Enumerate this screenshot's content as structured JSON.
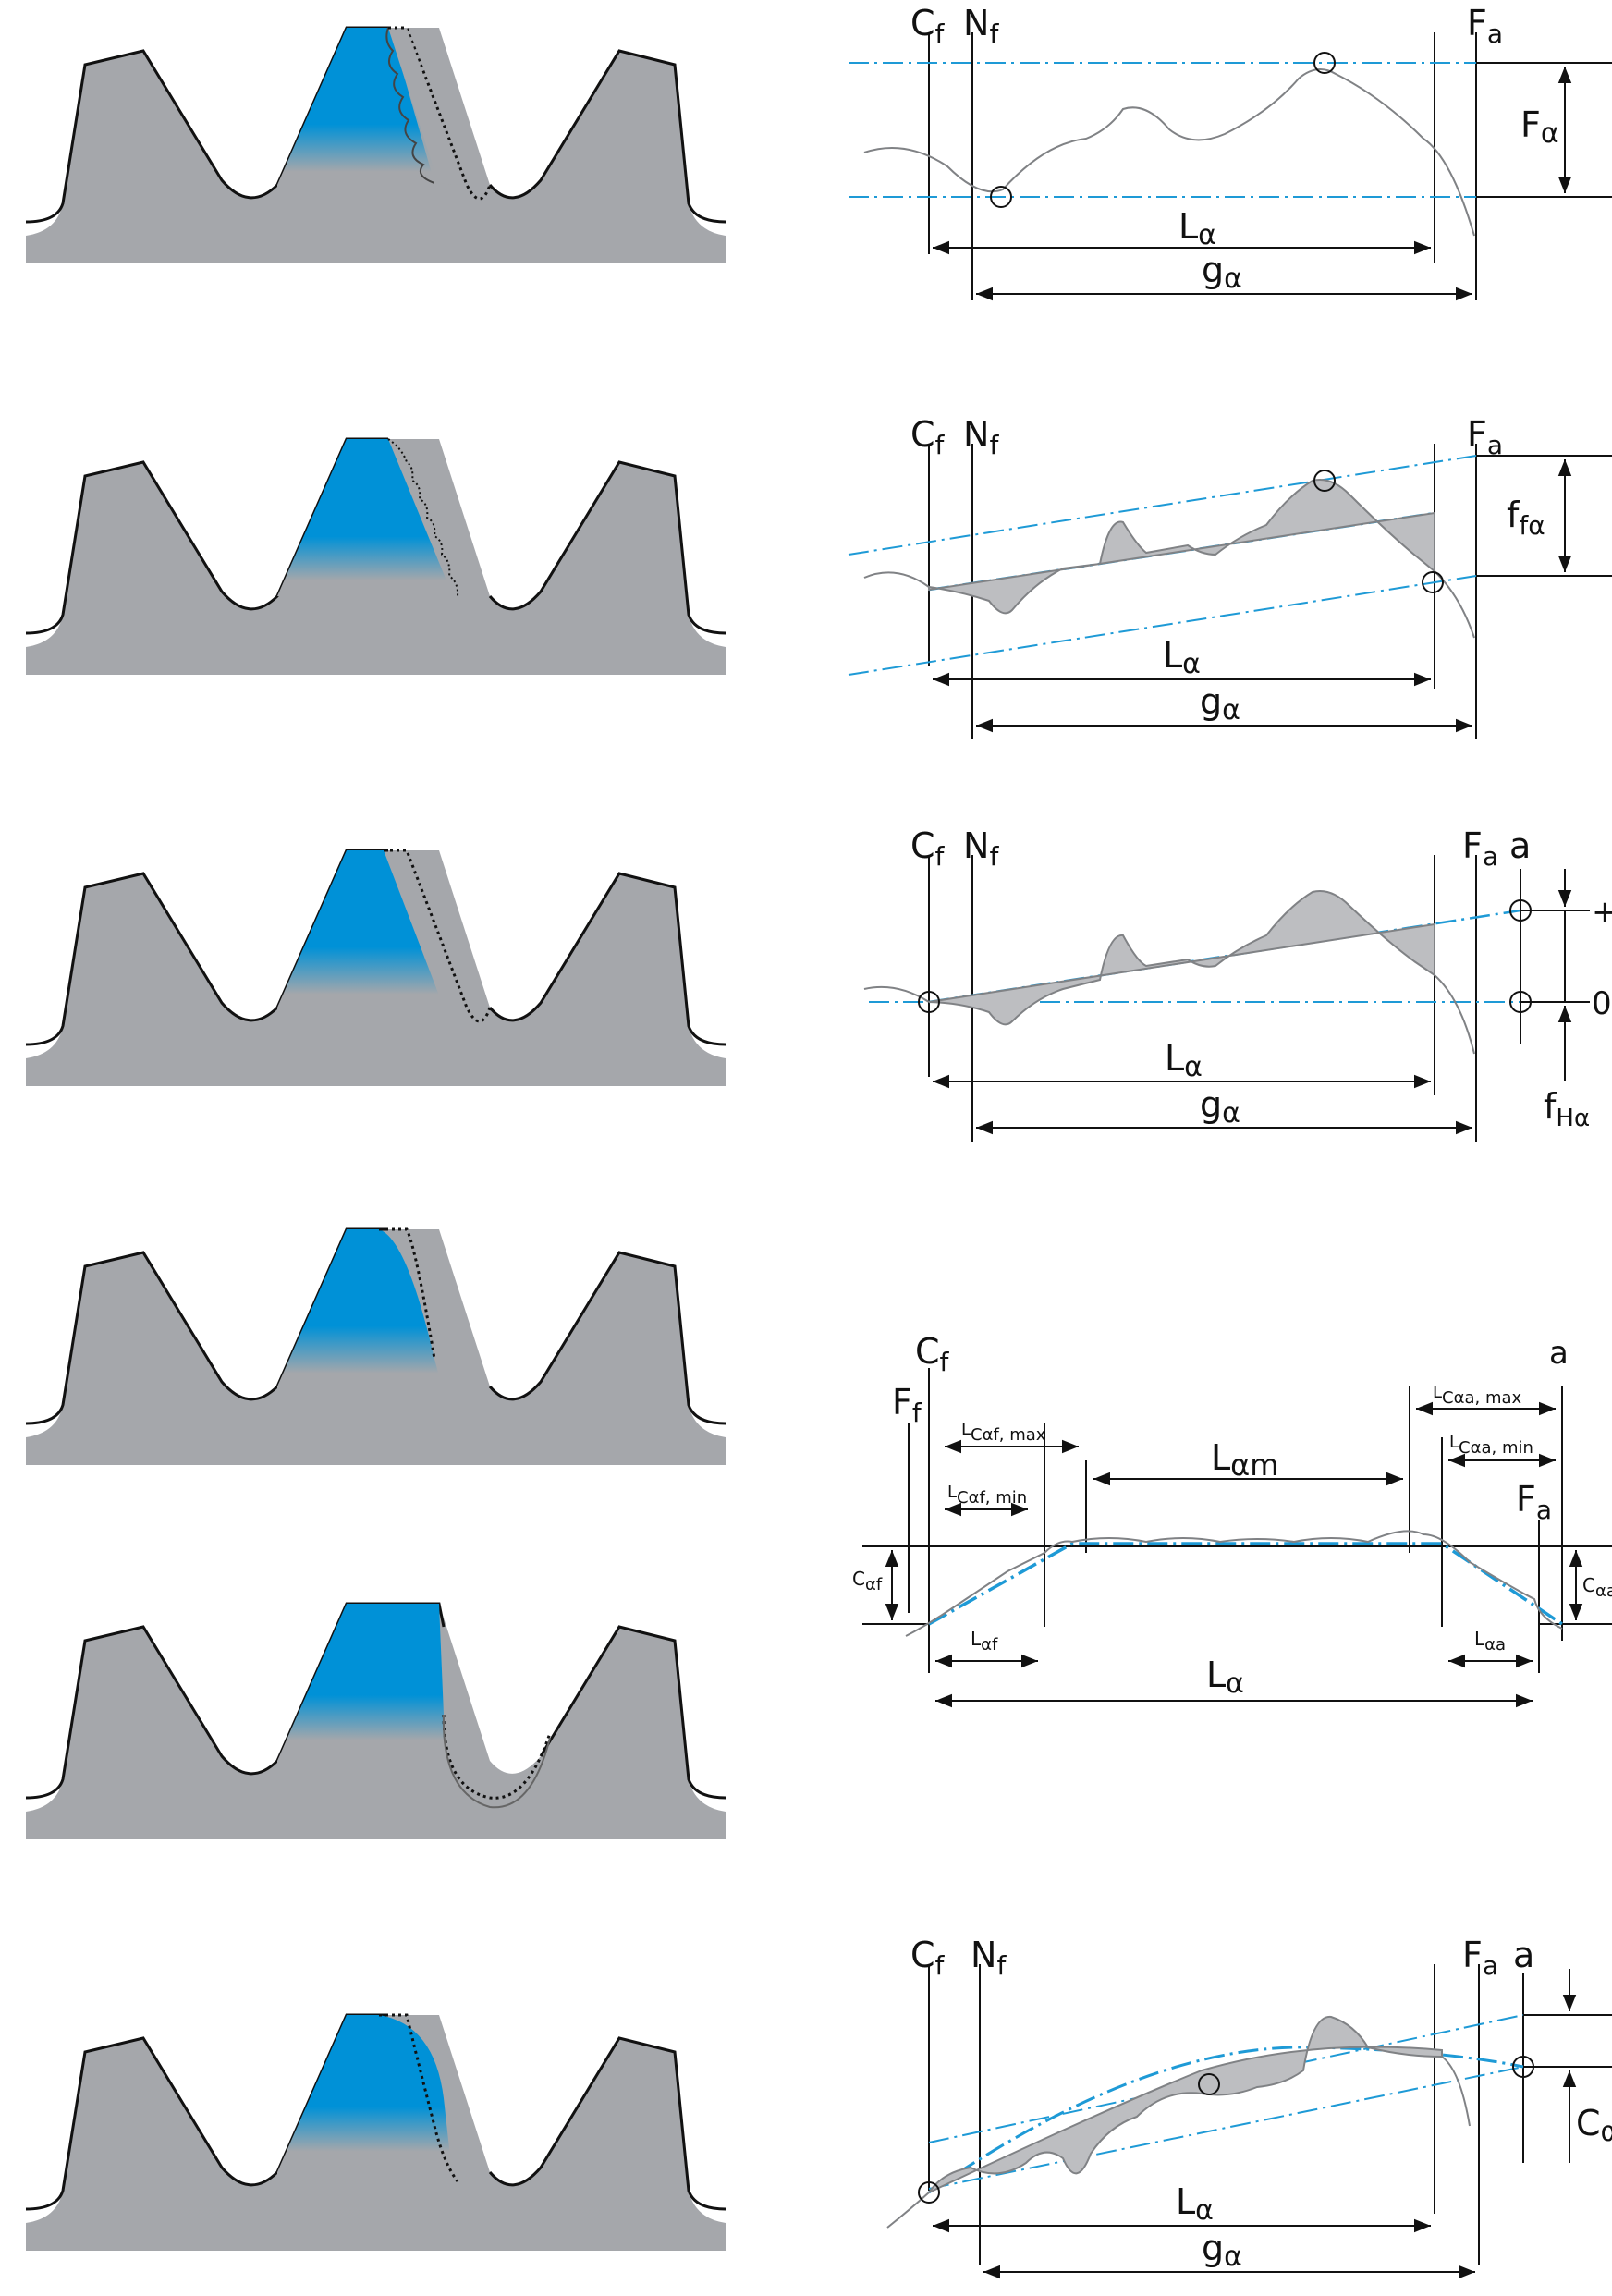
{
  "colors": {
    "gear_gray": "#a5a7ab",
    "tooth_blue": "#0091d7",
    "profile_gray": "#808285",
    "fill_gray": "#bdbec1",
    "dim_blue": "#1e9ad6",
    "ink": "#111111"
  },
  "panels": [
    {
      "labels": {
        "cf": "C",
        "cf_sub": "f",
        "nf": "N",
        "nf_sub": "f",
        "fa": "F",
        "fa_sub": "a",
        "dev": "F",
        "dev_sub": "α",
        "la": "L",
        "la_sub": "α",
        "ga": "g",
        "ga_sub": "α"
      }
    },
    {
      "labels": {
        "cf": "C",
        "cf_sub": "f",
        "nf": "N",
        "nf_sub": "f",
        "fa": "F",
        "fa_sub": "a",
        "dev": "f",
        "dev_sub": "fα",
        "la": "L",
        "la_sub": "α",
        "ga": "g",
        "ga_sub": "α"
      }
    },
    {
      "labels": {
        "cf": "C",
        "cf_sub": "f",
        "nf": "N",
        "nf_sub": "f",
        "fa": "F",
        "fa_sub": "a",
        "a": "a",
        "plus": "+",
        "zero": "0",
        "dev": "f",
        "dev_sub": "Hα",
        "la": "L",
        "la_sub": "α",
        "ga": "g",
        "ga_sub": "α"
      }
    },
    {
      "labels": {
        "cf": "C",
        "cf_sub": "f",
        "ff": "F",
        "ff_sub": "f",
        "a": "a",
        "fa": "F",
        "fa_sub": "a",
        "lcaf_max": "L",
        "lcaf_max_sub": "Cαf, max",
        "lcaf_min": "L",
        "lcaf_min_sub": "Cαf, min",
        "lam": "L",
        "lam_sub": "αm",
        "lcaa_max": "L",
        "lcaa_max_sub": "Cαa, max",
        "lcaa_min": "L",
        "lcaa_min_sub": "Cαa, min",
        "caf": "C",
        "caf_sub": "αf",
        "caa": "C",
        "caa_sub": "αa",
        "laf": "L",
        "laf_sub": "αf",
        "laa": "L",
        "laa_sub": "αa",
        "la": "L",
        "la_sub": "α"
      }
    },
    {
      "labels": {
        "cf": "C",
        "cf_sub": "f",
        "nf": "N",
        "nf_sub": "f",
        "fa": "F",
        "fa_sub": "a",
        "a": "a",
        "ca": "C",
        "ca_sub": "α",
        "la": "L",
        "la_sub": "α",
        "ga": "g",
        "ga_sub": "α"
      }
    }
  ]
}
